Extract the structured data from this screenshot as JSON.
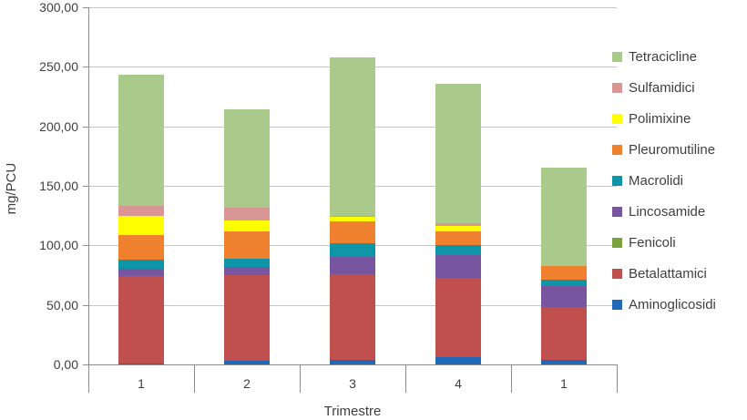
{
  "chart_data": {
    "type": "bar",
    "stacked": true,
    "xlabel": "Trimestre",
    "ylabel": "mg/PCU",
    "categories": [
      "1",
      "2",
      "3",
      "4",
      "1"
    ],
    "series": [
      {
        "name": "Aminoglicosidi",
        "color": "#2268B8",
        "values": [
          1,
          3,
          4,
          6,
          4
        ]
      },
      {
        "name": "Betalattamici",
        "color": "#C0504D",
        "values": [
          73,
          72,
          72,
          67,
          44
        ]
      },
      {
        "name": "Fenicoli",
        "color": "#7BA23D",
        "values": [
          0,
          0,
          0,
          0,
          0
        ]
      },
      {
        "name": "Lincosamide",
        "color": "#77569F",
        "values": [
          6,
          7,
          14,
          19,
          18
        ]
      },
      {
        "name": "Macrolidi",
        "color": "#0E96A8",
        "values": [
          8,
          7,
          12,
          8,
          5
        ]
      },
      {
        "name": "Pleuromutiline",
        "color": "#F0812E",
        "values": [
          21,
          23,
          18,
          12,
          12
        ]
      },
      {
        "name": "Polimixine",
        "color": "#FFFF00",
        "values": [
          16,
          9,
          4,
          4,
          0
        ]
      },
      {
        "name": "Sulfamidici",
        "color": "#D99694",
        "values": [
          8,
          11,
          1,
          3,
          0
        ]
      },
      {
        "name": "Tetracicline",
        "color": "#A9CA8B",
        "values": [
          110,
          82,
          133,
          117,
          82
        ]
      }
    ],
    "totals": [
      243,
      214,
      258,
      236,
      165
    ],
    "ylim": [
      0,
      300
    ],
    "y_tick_step": 50,
    "y_tick_labels": [
      "0,00",
      "50,00",
      "100,00",
      "150,00",
      "200,00",
      "250,00",
      "300,00"
    ],
    "grid": true,
    "legend_position": "right",
    "legend_order_top_to_bottom": [
      "Tetracicline",
      "Sulfamidici",
      "Polimixine",
      "Pleuromutiline",
      "Macrolidi",
      "Lincosamide",
      "Fenicoli",
      "Betalattamici",
      "Aminoglicosidi"
    ]
  },
  "colors": {
    "gridline": "#C6C6C6",
    "axis": "#8C8C8C",
    "text": "#3F3F3F",
    "background": "#FFFFFF"
  }
}
